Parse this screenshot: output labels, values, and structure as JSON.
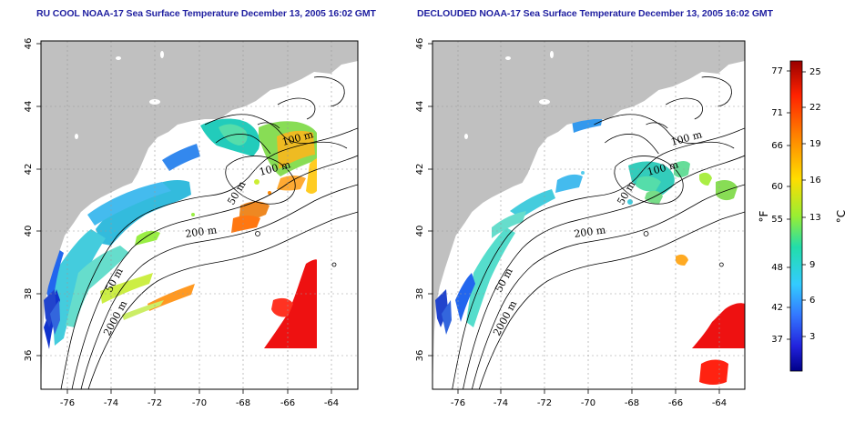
{
  "maps": [
    {
      "title": "RU COOL NOAA-17 Sea Surface Temperature December 13, 2005 16:02 GMT"
    },
    {
      "title": "DECLOUDED NOAA-17 Sea Surface Temperature December 13, 2005 16:02 GMT"
    }
  ],
  "axes": {
    "x_ticks": [
      "-76",
      "-74",
      "-72",
      "-70",
      "-68",
      "-66",
      "-64"
    ],
    "y_ticks": [
      "46",
      "44",
      "42",
      "40",
      "38",
      "36"
    ]
  },
  "contour_labels": [
    "100 m",
    "100 m",
    "50 m",
    "200 m",
    "50 m",
    "2000 m"
  ],
  "colorbar": {
    "unit_f": "°F",
    "unit_c": "°C",
    "fahrenheit_labels": [
      "77",
      "71",
      "66",
      "60",
      "55",
      "48",
      "42",
      "37"
    ],
    "celsius_labels": [
      "25",
      "22",
      "19",
      "16",
      "13",
      "9",
      "6",
      "3"
    ],
    "gradient_colors": [
      "#990000",
      "#ff2200",
      "#ff8800",
      "#ffdd00",
      "#99ee33",
      "#22ddaa",
      "#33ccff",
      "#3377ff",
      "#2222dd",
      "#000088"
    ]
  },
  "colors": {
    "land": "#c0c0c0",
    "title": "#1f1fa0",
    "grid": "#999999"
  }
}
